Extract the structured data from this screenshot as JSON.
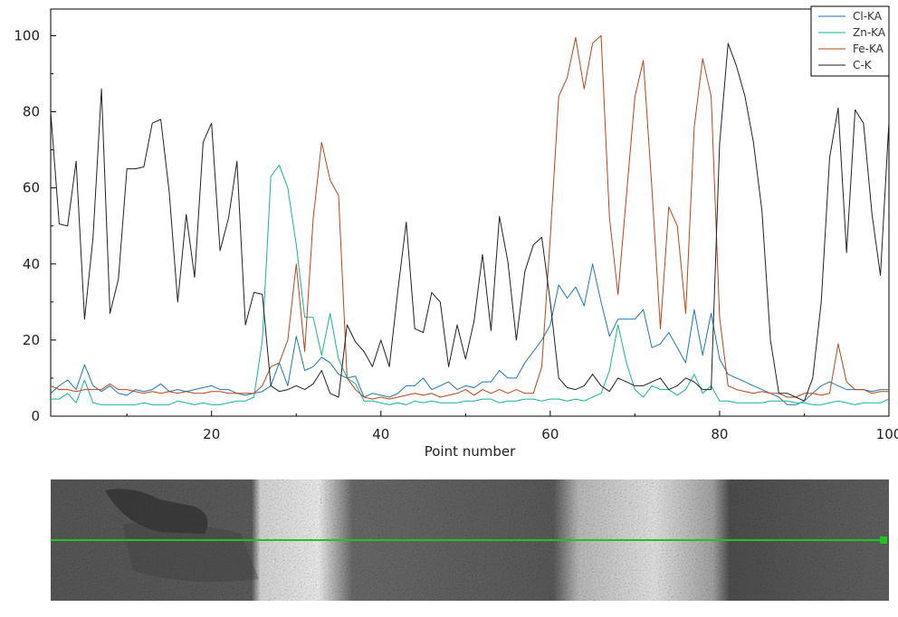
{
  "chart_data": {
    "type": "line",
    "title": "",
    "xlabel": "Point number",
    "ylabel": "",
    "xlim": [
      1,
      100
    ],
    "ylim": [
      0,
      107
    ],
    "x_ticks": [
      20,
      40,
      60,
      80,
      100
    ],
    "y_ticks": [
      0,
      20,
      40,
      60,
      80,
      100
    ],
    "grid": false,
    "legend_position": "top-right",
    "series": [
      {
        "name": "Cl-KA",
        "color": "#1f77b4",
        "x": [
          1,
          2,
          3,
          4,
          5,
          6,
          7,
          8,
          9,
          10,
          11,
          12,
          13,
          14,
          15,
          16,
          17,
          18,
          19,
          20,
          21,
          22,
          23,
          24,
          25,
          26,
          27,
          28,
          29,
          30,
          31,
          32,
          33,
          34,
          35,
          36,
          37,
          38,
          39,
          40,
          41,
          42,
          43,
          44,
          45,
          46,
          47,
          48,
          49,
          50,
          51,
          52,
          53,
          54,
          55,
          56,
          57,
          58,
          59,
          60,
          61,
          62,
          63,
          64,
          65,
          66,
          67,
          68,
          69,
          70,
          71,
          72,
          73,
          74,
          75,
          76,
          77,
          78,
          79,
          80,
          81,
          82,
          83,
          84,
          85,
          86,
          87,
          88,
          89,
          90,
          91,
          92,
          93,
          94,
          95,
          96,
          97,
          98,
          99,
          100
        ],
        "values": [
          6,
          8,
          9.5,
          7,
          13.5,
          8,
          6.5,
          8,
          6,
          5.5,
          7,
          6.5,
          7,
          8.5,
          6.5,
          7,
          6.5,
          7,
          7.5,
          8,
          7,
          7,
          6,
          5.5,
          6,
          6.5,
          8,
          14,
          8,
          21,
          12,
          13,
          15.5,
          14,
          11,
          10,
          10.5,
          5,
          6,
          5.5,
          5,
          6,
          8,
          8,
          10,
          7,
          8,
          9,
          7,
          8,
          7.5,
          9,
          9,
          12,
          10,
          10,
          14,
          17,
          20,
          24,
          34.5,
          31,
          34,
          29,
          40,
          30,
          21,
          25.5,
          25.5,
          25.5,
          28,
          18,
          19,
          22,
          18,
          14,
          28,
          16,
          27,
          15,
          11,
          10,
          9,
          8,
          7,
          6,
          5,
          3,
          3,
          4,
          6,
          8,
          9,
          8,
          7,
          7,
          7,
          6.5,
          7,
          7
        ]
      },
      {
        "name": "Zn-KA",
        "color": "#17b39a",
        "x": [
          1,
          2,
          3,
          4,
          5,
          6,
          7,
          8,
          9,
          10,
          11,
          12,
          13,
          14,
          15,
          16,
          17,
          18,
          19,
          20,
          21,
          22,
          23,
          24,
          25,
          26,
          27,
          28,
          29,
          30,
          31,
          32,
          33,
          34,
          35,
          36,
          37,
          38,
          39,
          40,
          41,
          42,
          43,
          44,
          45,
          46,
          47,
          48,
          49,
          50,
          51,
          52,
          53,
          54,
          55,
          56,
          57,
          58,
          59,
          60,
          61,
          62,
          63,
          64,
          65,
          66,
          67,
          68,
          69,
          70,
          71,
          72,
          73,
          74,
          75,
          76,
          77,
          78,
          79,
          80,
          81,
          82,
          83,
          84,
          85,
          86,
          87,
          88,
          89,
          90,
          91,
          92,
          93,
          94,
          95,
          96,
          97,
          98,
          99,
          100
        ],
        "values": [
          4.5,
          4.5,
          6,
          3.5,
          9.5,
          3.5,
          3,
          3,
          3,
          3,
          3,
          3.5,
          3,
          3,
          3,
          4,
          3.5,
          3,
          3.5,
          3,
          3,
          3.5,
          4,
          4,
          5,
          20,
          63,
          66,
          60,
          45,
          26,
          26,
          16,
          27,
          15,
          10,
          8.5,
          4,
          4,
          3.5,
          3,
          3.5,
          3,
          4,
          3.5,
          4,
          3.5,
          3.5,
          3.5,
          4,
          4,
          4.5,
          4.5,
          3.5,
          4,
          4,
          4.5,
          4.5,
          4,
          4.5,
          4.5,
          4,
          4.5,
          4,
          5,
          6,
          12,
          24,
          14,
          7,
          5,
          8,
          7,
          7,
          5.5,
          7,
          11,
          6,
          8,
          4,
          4,
          3.5,
          3.5,
          3.5,
          3.5,
          4,
          4,
          4,
          3.5,
          3.5,
          3,
          3,
          3.5,
          4,
          3.5,
          3,
          3.5,
          3.5,
          3.5,
          4.5
        ]
      },
      {
        "name": "Fe-KA",
        "color": "#b5461a",
        "x": [
          1,
          2,
          3,
          4,
          5,
          6,
          7,
          8,
          9,
          10,
          11,
          12,
          13,
          14,
          15,
          16,
          17,
          18,
          19,
          20,
          21,
          22,
          23,
          24,
          25,
          26,
          27,
          28,
          29,
          30,
          31,
          32,
          33,
          34,
          35,
          36,
          37,
          38,
          39,
          40,
          41,
          42,
          43,
          44,
          45,
          46,
          47,
          48,
          49,
          50,
          51,
          52,
          53,
          54,
          55,
          56,
          57,
          58,
          59,
          60,
          61,
          62,
          63,
          64,
          65,
          66,
          67,
          68,
          69,
          70,
          71,
          72,
          73,
          74,
          75,
          76,
          77,
          78,
          79,
          80,
          81,
          82,
          83,
          84,
          85,
          86,
          87,
          88,
          89,
          90,
          91,
          92,
          93,
          94,
          95,
          96,
          97,
          98,
          99,
          100
        ],
        "values": [
          8,
          7,
          7,
          6.5,
          7,
          7,
          7,
          8.5,
          7,
          7,
          6.5,
          6,
          6.5,
          6,
          6.5,
          6,
          6.5,
          6,
          6,
          6.5,
          6.5,
          6,
          6,
          6,
          6,
          8,
          13,
          14,
          20,
          40,
          17,
          52,
          72,
          62,
          58,
          10,
          7,
          5,
          4.5,
          5,
          4.5,
          5,
          5.5,
          6,
          5.5,
          6,
          5,
          5.5,
          6,
          7,
          5.5,
          7,
          6,
          7,
          6,
          7,
          6,
          6,
          13,
          47,
          84,
          89,
          99.5,
          86,
          98,
          100,
          52,
          32,
          58,
          84,
          93.5,
          60,
          23,
          55,
          50,
          27,
          76,
          94,
          84,
          26,
          8,
          7,
          6.5,
          6,
          6.5,
          6,
          6,
          5,
          5,
          6,
          6,
          5.5,
          6,
          19,
          9,
          7,
          7,
          6,
          6.5,
          6.5
        ]
      },
      {
        "name": "C-K",
        "color": "#222222",
        "x": [
          1,
          2,
          3,
          4,
          5,
          6,
          7,
          8,
          9,
          10,
          11,
          12,
          13,
          14,
          15,
          16,
          17,
          18,
          19,
          20,
          21,
          22,
          23,
          24,
          25,
          26,
          27,
          28,
          29,
          30,
          31,
          32,
          33,
          34,
          35,
          36,
          37,
          38,
          39,
          40,
          41,
          42,
          43,
          44,
          45,
          46,
          47,
          48,
          49,
          50,
          51,
          52,
          53,
          54,
          55,
          56,
          57,
          58,
          59,
          60,
          61,
          62,
          63,
          64,
          65,
          66,
          67,
          68,
          69,
          70,
          71,
          72,
          73,
          74,
          75,
          76,
          77,
          78,
          79,
          80,
          81,
          82,
          83,
          84,
          85,
          86,
          87,
          88,
          89,
          90,
          91,
          92,
          93,
          94,
          95,
          96,
          97,
          98,
          99,
          100
        ],
        "values": [
          80,
          50.5,
          50,
          67,
          25.5,
          47,
          86,
          27,
          36,
          65,
          65,
          65.5,
          77,
          78,
          59,
          30,
          53,
          36.5,
          72,
          77,
          43.5,
          52,
          67,
          24,
          32.5,
          32,
          8,
          6.5,
          7,
          8,
          7,
          8.5,
          12,
          6,
          5,
          24,
          19.5,
          17,
          13,
          20,
          13,
          33,
          51,
          23,
          22,
          32.5,
          30,
          13,
          24,
          15,
          25,
          42.5,
          22.5,
          52.5,
          40.5,
          20,
          38,
          45,
          47,
          30,
          10,
          7.5,
          7,
          8,
          11,
          8,
          6.5,
          10,
          9,
          8,
          8,
          9,
          10,
          7,
          8,
          10,
          9,
          7,
          7,
          71.5,
          98,
          92,
          84,
          72,
          54,
          20,
          6,
          6,
          5,
          4,
          10,
          30,
          68,
          81,
          43,
          80.5,
          77,
          53,
          37,
          77.5
        ]
      }
    ]
  },
  "sem_image": {
    "description_name": "sem-linescan-micrograph",
    "scan_line_color": "#1fc41f"
  }
}
